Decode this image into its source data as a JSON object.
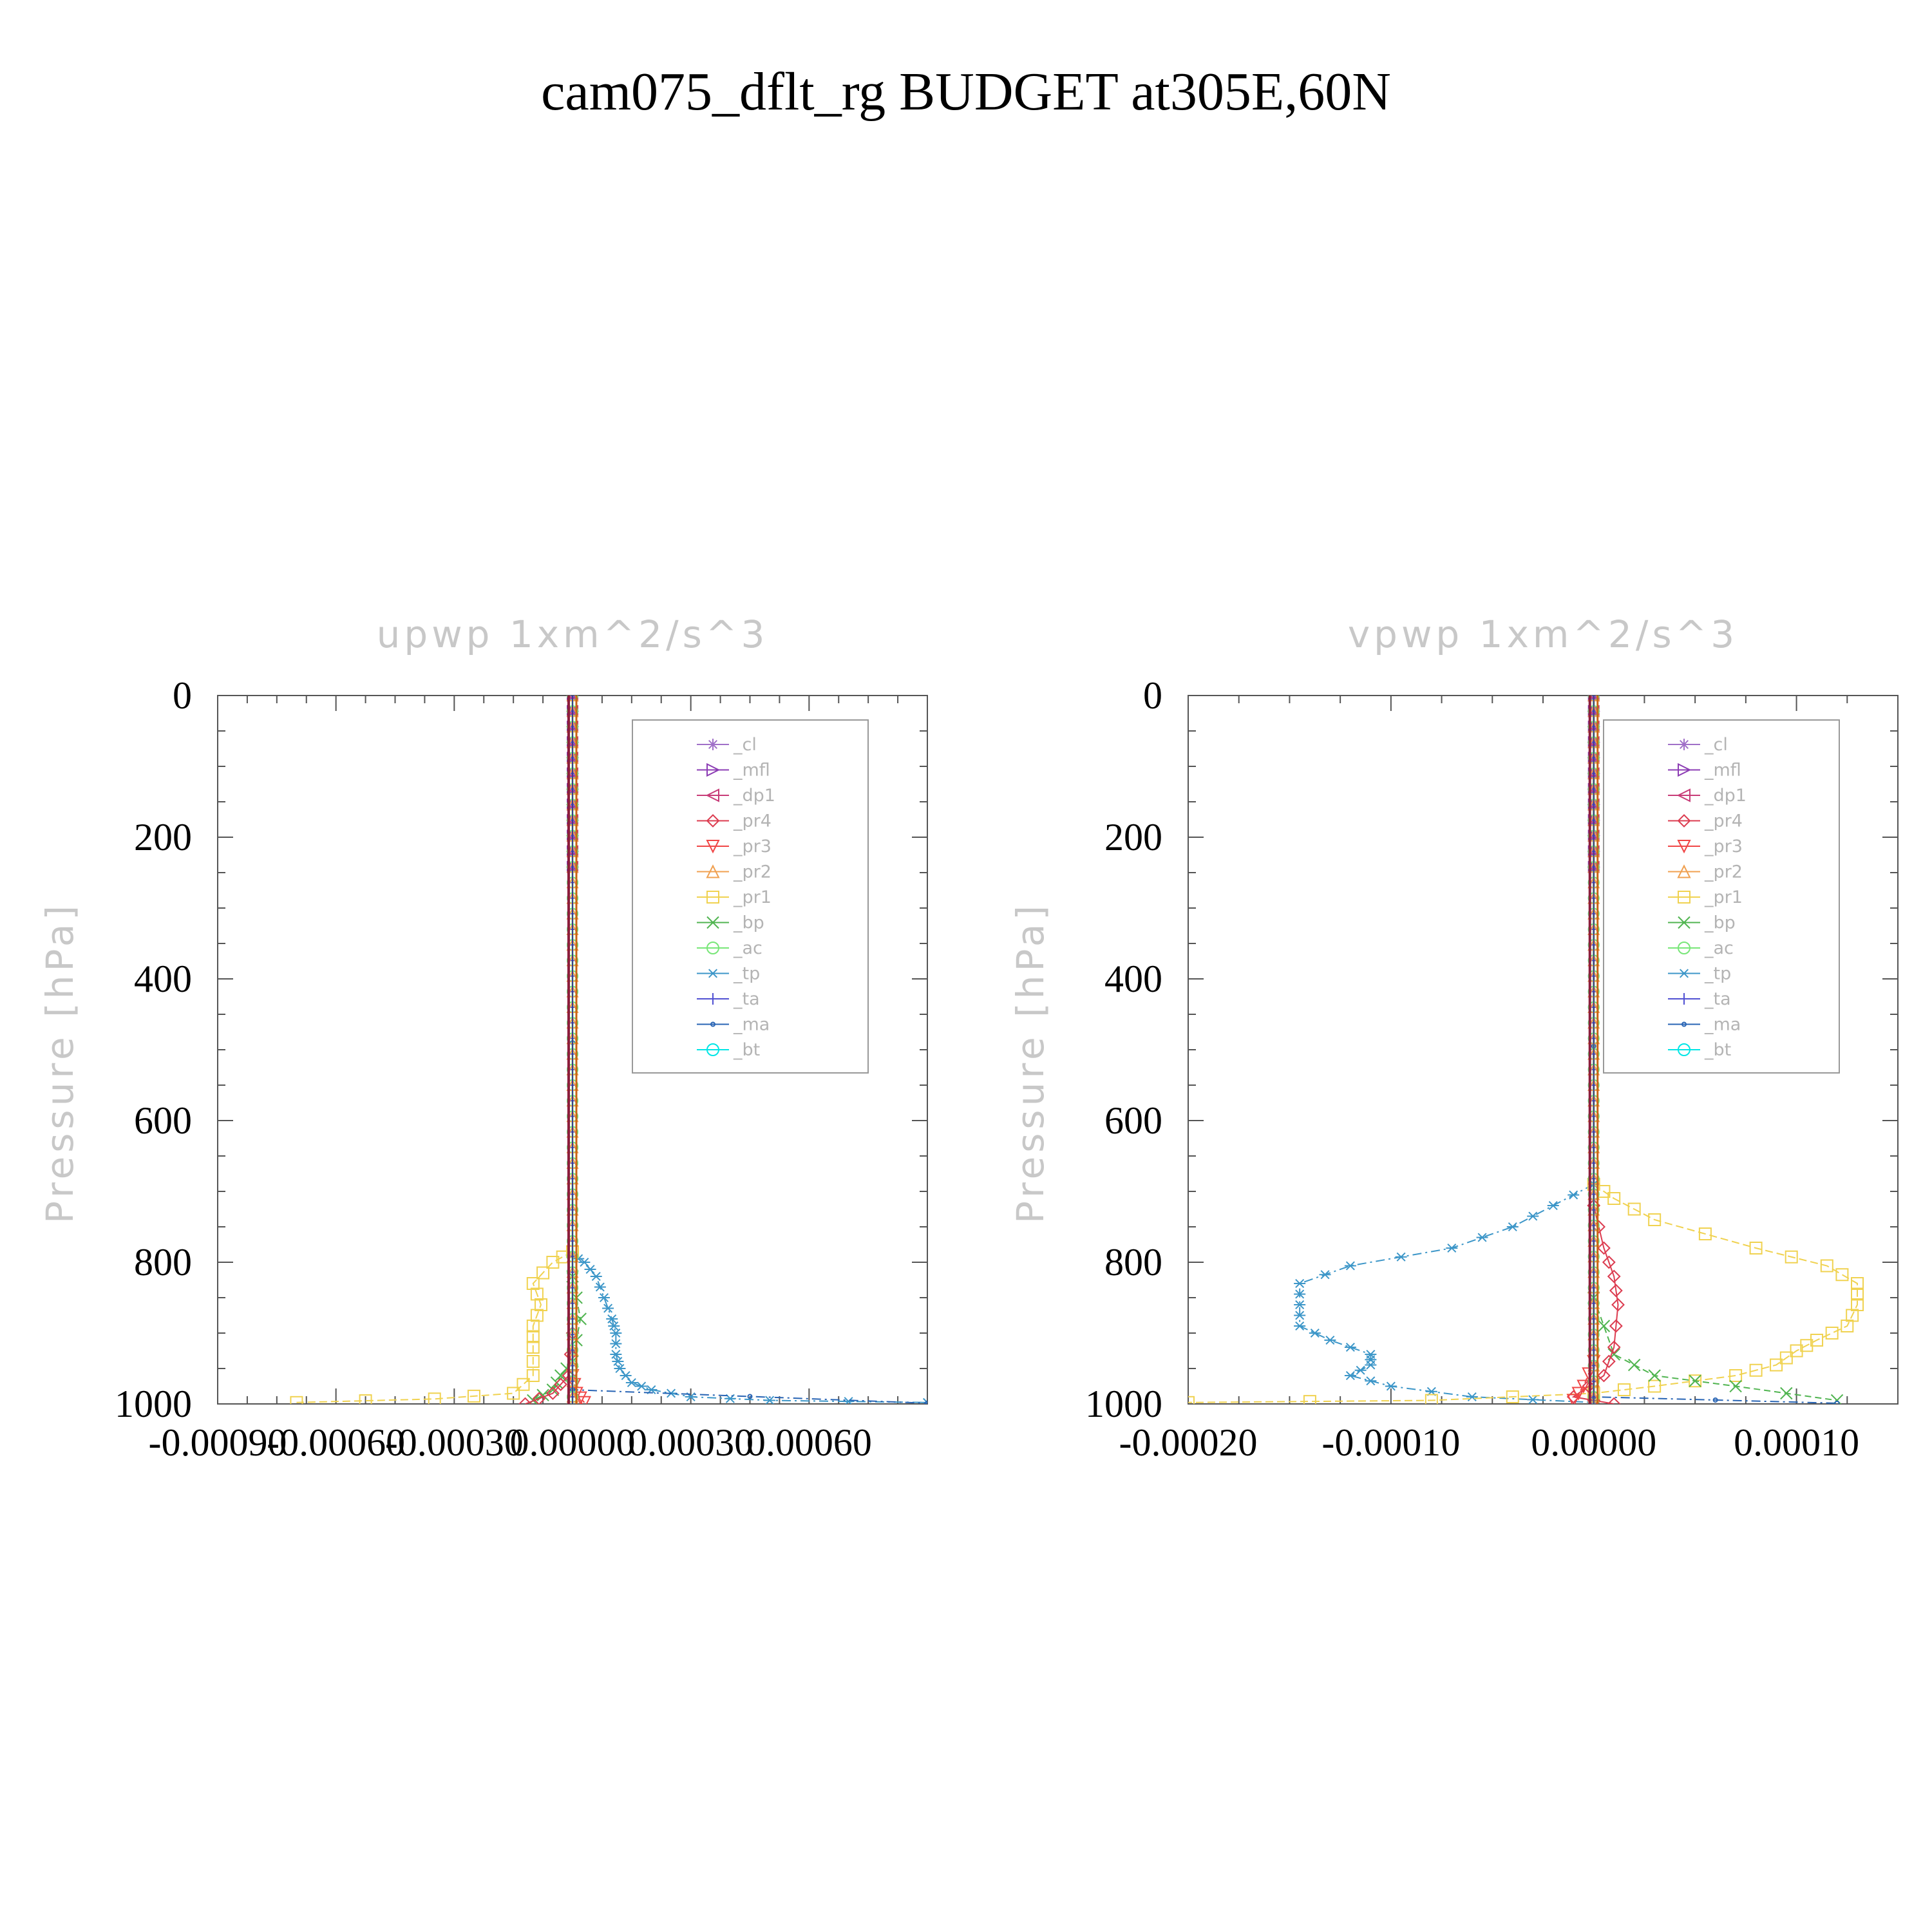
{
  "figure_title": "cam075_dflt_rg  BUDGET at305E,60N",
  "legend_entries": [
    {
      "label": "_cl",
      "color": "#a070c8",
      "marker": "star"
    },
    {
      "label": "_mfl",
      "color": "#8c3cb4",
      "marker": "tri-right"
    },
    {
      "label": "_dp1",
      "color": "#c83c78",
      "marker": "tri-left"
    },
    {
      "label": "_pr4",
      "color": "#dc3c50",
      "marker": "diamond"
    },
    {
      "label": "_pr3",
      "color": "#f04646",
      "marker": "tri-down"
    },
    {
      "label": "_pr2",
      "color": "#f0a050",
      "marker": "tri-up"
    },
    {
      "label": "_pr1",
      "color": "#f0d250",
      "marker": "square"
    },
    {
      "label": "_bp",
      "color": "#50b450",
      "marker": "x"
    },
    {
      "label": "_ac",
      "color": "#78e678",
      "marker": "circle"
    },
    {
      "label": "_tp",
      "color": "#3c96c8",
      "marker": "asterisk"
    },
    {
      "label": "_ta",
      "color": "#5050d2",
      "marker": "plus"
    },
    {
      "label": "_ma",
      "color": "#2864b4",
      "marker": "dot"
    },
    {
      "label": "_bt",
      "color": "#00e6e6",
      "marker": "filled-circle"
    }
  ],
  "chart_data": [
    {
      "type": "line",
      "title": "upwp    1xm^2/s^3",
      "xlabel": "",
      "ylabel": "Pressure  [hPa]",
      "xlim": [
        -0.0009,
        0.0009
      ],
      "ylim": [
        1000,
        0
      ],
      "x_ticks": [
        "-0.00090",
        "-0.00060",
        "-0.00030",
        "0.00000",
        "0.00030",
        "0.00060"
      ],
      "x_tick_values": [
        -0.0009,
        -0.0006,
        -0.0003,
        0.0,
        0.0003,
        0.0006
      ],
      "y_ticks": [
        "0",
        "200",
        "400",
        "600",
        "800",
        "1000"
      ],
      "y_tick_values": [
        0,
        200,
        400,
        600,
        800,
        1000
      ],
      "legend_position": "top-right",
      "series": [
        {
          "name": "_tp",
          "points": [
            [
              0,
              790
            ],
            [
              3e-05,
              800
            ],
            [
              6e-05,
              820
            ],
            [
              8e-05,
              850
            ],
            [
              0.0001,
              880
            ],
            [
              0.00011,
              900
            ],
            [
              0.00011,
              930
            ],
            [
              0.00012,
              950
            ],
            [
              0.00015,
              970
            ],
            [
              0.0002,
              980
            ],
            [
              0.0003,
              990
            ],
            [
              0.0005,
              995
            ],
            [
              0.0009,
              998
            ]
          ]
        },
        {
          "name": "_pr1",
          "points": [
            [
              0,
              785
            ],
            [
              -5e-05,
              800
            ],
            [
              -0.0001,
              830
            ],
            [
              -8e-05,
              860
            ],
            [
              -0.0001,
              890
            ],
            [
              -0.0001,
              920
            ],
            [
              -0.0001,
              960
            ],
            [
              -0.00015,
              985
            ],
            [
              -0.00035,
              993
            ],
            [
              -0.0007,
              998
            ]
          ]
        },
        {
          "name": "_bp",
          "points": [
            [
              0,
              820
            ],
            [
              2e-05,
              880
            ],
            [
              0,
              940
            ],
            [
              -3e-05,
              960
            ],
            [
              -5e-05,
              980
            ],
            [
              -0.0001,
              995
            ]
          ]
        },
        {
          "name": "_pr4",
          "points": [
            [
              0,
              900
            ],
            [
              -1e-05,
              960
            ],
            [
              -5e-05,
              985
            ],
            [
              -0.00012,
              1000
            ]
          ]
        },
        {
          "name": "_pr3",
          "points": [
            [
              0,
              960
            ],
            [
              1e-05,
              985
            ],
            [
              3e-05,
              998
            ]
          ]
        },
        {
          "name": "_ma",
          "points": [
            [
              0,
              0
            ],
            [
              0,
              980
            ],
            [
              0.0009,
              999
            ]
          ]
        },
        {
          "name": "_ta",
          "points": [
            [
              0,
              0
            ],
            [
              0,
              1000
            ]
          ]
        },
        {
          "name": "_bt",
          "points": [
            [
              0,
              0
            ],
            [
              0,
              1000
            ]
          ]
        },
        {
          "name": "_cl",
          "points": [
            [
              0,
              0
            ],
            [
              0,
              1000
            ]
          ]
        },
        {
          "name": "_mfl",
          "points": [
            [
              0,
              0
            ],
            [
              0,
              1000
            ]
          ]
        },
        {
          "name": "_dp1",
          "points": [
            [
              0,
              0
            ],
            [
              0,
              1000
            ]
          ]
        },
        {
          "name": "_pr2",
          "points": [
            [
              0,
              0
            ],
            [
              0,
              1000
            ]
          ]
        },
        {
          "name": "_ac",
          "points": [
            [
              0,
              0
            ],
            [
              0,
              1000
            ]
          ]
        }
      ]
    },
    {
      "type": "line",
      "title": "vpwp    1xm^2/s^3",
      "xlabel": "",
      "ylabel": "Pressure  [hPa]",
      "xlim": [
        -0.0002,
        0.00015
      ],
      "ylim": [
        1000,
        0
      ],
      "x_ticks": [
        "-0.00020",
        "-0.00010",
        "0.00000",
        "0.00010"
      ],
      "x_tick_values": [
        -0.0002,
        -0.0001,
        0.0,
        0.0001
      ],
      "y_ticks": [
        "0",
        "200",
        "400",
        "600",
        "800",
        "1000"
      ],
      "y_tick_values": [
        0,
        200,
        400,
        600,
        800,
        1000
      ],
      "legend_position": "top-right",
      "series": [
        {
          "name": "_tp",
          "points": [
            [
              0,
              690
            ],
            [
              -2e-05,
              720
            ],
            [
              -4e-05,
              750
            ],
            [
              -7e-05,
              780
            ],
            [
              -0.00012,
              805
            ],
            [
              -0.000145,
              830
            ],
            [
              -0.000145,
              860
            ],
            [
              -0.000145,
              890
            ],
            [
              -0.00013,
              910
            ],
            [
              -0.00011,
              930
            ],
            [
              -0.00011,
              945
            ],
            [
              -0.00012,
              960
            ],
            [
              -0.0001,
              975
            ],
            [
              -6e-05,
              990
            ],
            [
              0,
              998
            ]
          ]
        },
        {
          "name": "_pr1",
          "points": [
            [
              0,
              690
            ],
            [
              1e-05,
              710
            ],
            [
              3e-05,
              740
            ],
            [
              8e-05,
              780
            ],
            [
              0.000115,
              805
            ],
            [
              0.00013,
              830
            ],
            [
              0.00013,
              860
            ],
            [
              0.000125,
              890
            ],
            [
              0.00011,
              910
            ],
            [
              0.0001,
              925
            ],
            [
              9e-05,
              945
            ],
            [
              7e-05,
              960
            ],
            [
              3e-05,
              975
            ],
            [
              0,
              985
            ],
            [
              -8e-05,
              995
            ],
            [
              -0.0002,
              998
            ]
          ]
        },
        {
          "name": "_bp",
          "points": [
            [
              0,
              850
            ],
            [
              1e-05,
              930
            ],
            [
              3e-05,
              960
            ],
            [
              7e-05,
              975
            ],
            [
              0.00012,
              995
            ]
          ]
        },
        {
          "name": "_pr4",
          "points": [
            [
              0,
              720
            ],
            [
              5e-06,
              780
            ],
            [
              1e-05,
              820
            ],
            [
              1.2e-05,
              860
            ],
            [
              1e-05,
              920
            ],
            [
              5e-06,
              960
            ],
            [
              -1e-05,
              990
            ],
            [
              1e-05,
              1000
            ]
          ]
        },
        {
          "name": "_pr3",
          "points": [
            [
              0,
              940
            ],
            [
              -5e-06,
              975
            ],
            [
              -1e-05,
              995
            ]
          ]
        },
        {
          "name": "_ma",
          "points": [
            [
              0,
              0
            ],
            [
              0,
              990
            ],
            [
              0.00012,
              999
            ]
          ]
        },
        {
          "name": "_ta",
          "points": [
            [
              0,
              0
            ],
            [
              0,
              1000
            ]
          ]
        },
        {
          "name": "_bt",
          "points": [
            [
              0,
              0
            ],
            [
              0,
              1000
            ]
          ]
        },
        {
          "name": "_cl",
          "points": [
            [
              0,
              0
            ],
            [
              0,
              1000
            ]
          ]
        },
        {
          "name": "_mfl",
          "points": [
            [
              0,
              0
            ],
            [
              0,
              1000
            ]
          ]
        },
        {
          "name": "_dp1",
          "points": [
            [
              0,
              0
            ],
            [
              0,
              1000
            ]
          ]
        },
        {
          "name": "_pr2",
          "points": [
            [
              0,
              0
            ],
            [
              0,
              1000
            ]
          ]
        },
        {
          "name": "_ac",
          "points": [
            [
              0,
              0
            ],
            [
              0,
              1000
            ]
          ]
        }
      ]
    }
  ]
}
